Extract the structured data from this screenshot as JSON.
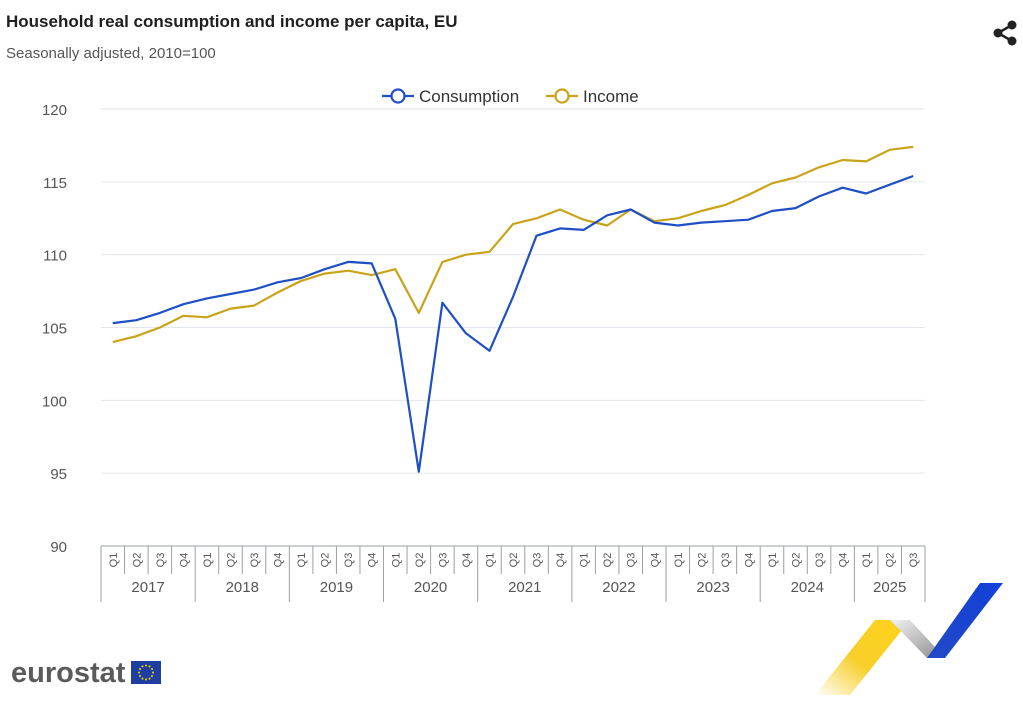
{
  "header": {
    "title": "Household real consumption and income per capita, EU",
    "subtitle": "Seasonally adjusted, 2010=100"
  },
  "icons": {
    "share": "share-icon",
    "flag": "eu-flag-icon"
  },
  "branding": {
    "logo_text": "eurostat"
  },
  "colors": {
    "consumption": "#1f4fc4",
    "income": "#c9a319",
    "grid": "#e3e6ee",
    "axis_text": "#555555"
  },
  "chart_data": {
    "type": "line",
    "title": "Household real consumption and income per capita, EU",
    "subtitle": "Seasonally adjusted, 2010=100",
    "xlabel": "",
    "ylabel": "",
    "ylim": [
      90,
      120
    ],
    "yticks": [
      90,
      95,
      100,
      105,
      110,
      115,
      120
    ],
    "grid": true,
    "legend": "top-center",
    "years": [
      "2017",
      "2018",
      "2019",
      "2020",
      "2021",
      "2022",
      "2023",
      "2024",
      "2025"
    ],
    "quarters": [
      "Q1",
      "Q2",
      "Q3",
      "Q4",
      "Q1",
      "Q2",
      "Q3",
      "Q4",
      "Q1",
      "Q2",
      "Q3",
      "Q4",
      "Q1",
      "Q2",
      "Q3",
      "Q4",
      "Q1",
      "Q2",
      "Q3",
      "Q4",
      "Q1",
      "Q2",
      "Q3",
      "Q4",
      "Q1",
      "Q2",
      "Q3",
      "Q4",
      "Q1",
      "Q2",
      "Q3",
      "Q4",
      "Q1",
      "Q2",
      "Q3"
    ],
    "series": [
      {
        "name": "Consumption",
        "values": [
          105.3,
          105.5,
          106.0,
          106.6,
          107.0,
          107.3,
          107.6,
          108.1,
          108.4,
          109.0,
          109.5,
          109.4,
          105.6,
          95.1,
          106.7,
          104.6,
          103.4,
          107.1,
          111.3,
          111.8,
          111.7,
          112.7,
          113.1,
          112.2,
          112.0,
          112.2,
          112.3,
          112.4,
          113.0,
          113.2,
          114.0,
          114.6,
          114.2,
          114.8,
          115.4
        ]
      },
      {
        "name": "Income",
        "values": [
          104.0,
          104.4,
          105.0,
          105.8,
          105.7,
          106.3,
          106.5,
          107.4,
          108.2,
          108.7,
          108.9,
          108.6,
          109.0,
          106.0,
          109.5,
          110.0,
          110.2,
          112.1,
          112.5,
          113.1,
          112.4,
          112.0,
          113.1,
          112.3,
          112.5,
          113.0,
          113.4,
          114.1,
          114.9,
          115.3,
          116.0,
          116.5,
          116.4,
          117.2,
          117.4
        ]
      }
    ]
  }
}
